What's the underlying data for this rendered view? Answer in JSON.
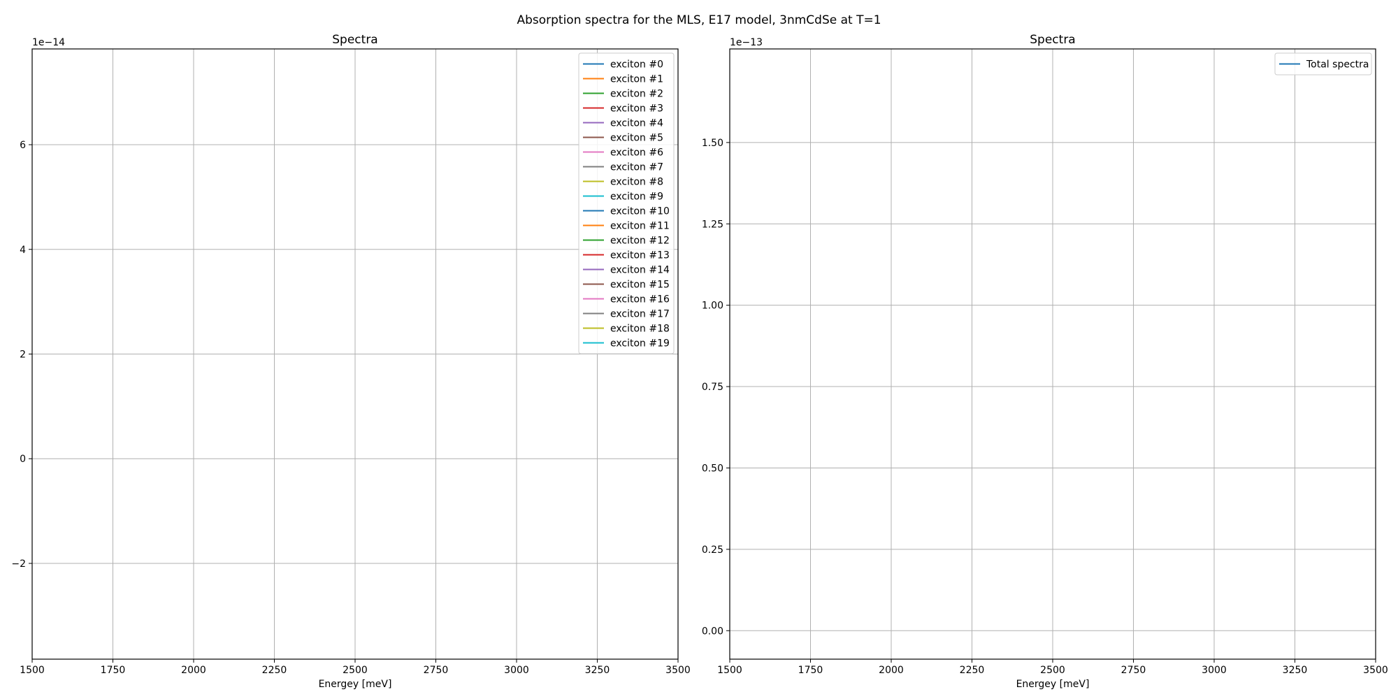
{
  "suptitle": "Absorption spectra for the MLS, E17 model, 3nmCdSe at T=1",
  "chart_data": [
    {
      "type": "line",
      "title": "Spectra",
      "xlabel": "Energey [meV]",
      "ylabel": "",
      "xlim": [
        1500,
        3500
      ],
      "ylim": [
        -3.83e-14,
        7.83e-14
      ],
      "offset_text": "1e−14",
      "x_ticks": [
        1500,
        1750,
        2000,
        2250,
        2500,
        2750,
        3000,
        3250,
        3500
      ],
      "y_ticks": [
        -2e-14,
        0,
        2e-14,
        4e-14,
        6e-14
      ],
      "y_tick_labels": [
        "−2",
        "0",
        "2",
        "4",
        "6"
      ],
      "grid": true,
      "legend_position": "top-right",
      "series": [
        {
          "name": "exciton #0",
          "color": "#1f77b4"
        },
        {
          "name": "exciton #1",
          "color": "#ff7f0e"
        },
        {
          "name": "exciton #2",
          "color": "#2ca02c"
        },
        {
          "name": "exciton #3",
          "color": "#d62728"
        },
        {
          "name": "exciton #4",
          "color": "#9467bd"
        },
        {
          "name": "exciton #5",
          "color": "#8c564b"
        },
        {
          "name": "exciton #6",
          "color": "#e377c2"
        },
        {
          "name": "exciton #7",
          "color": "#7f7f7f"
        },
        {
          "name": "exciton #8",
          "color": "#bcbd22"
        },
        {
          "name": "exciton #9",
          "color": "#17becf"
        },
        {
          "name": "exciton #10",
          "color": "#1f77b4"
        },
        {
          "name": "exciton #11",
          "color": "#ff7f0e"
        },
        {
          "name": "exciton #12",
          "color": "#2ca02c"
        },
        {
          "name": "exciton #13",
          "color": "#d62728"
        },
        {
          "name": "exciton #14",
          "color": "#9467bd"
        },
        {
          "name": "exciton #15",
          "color": "#8c564b"
        },
        {
          "name": "exciton #16",
          "color": "#e377c2"
        },
        {
          "name": "exciton #17",
          "color": "#7f7f7f"
        },
        {
          "name": "exciton #18",
          "color": "#bcbd22"
        },
        {
          "name": "exciton #19",
          "color": "#17becf"
        }
      ]
    },
    {
      "type": "line",
      "title": "Spectra",
      "xlabel": "Energey [meV]",
      "ylabel": "",
      "xlim": [
        1500,
        3500
      ],
      "ylim": [
        -8.75e-15,
        1.7875e-13
      ],
      "offset_text": "1e−13",
      "x_ticks": [
        1500,
        1750,
        2000,
        2250,
        2500,
        2750,
        3000,
        3250,
        3500
      ],
      "y_ticks": [
        0,
        2.5e-14,
        5e-14,
        7.5e-14,
        1e-13,
        1.25e-13,
        1.5e-13
      ],
      "y_tick_labels": [
        "0.00",
        "0.25",
        "0.50",
        "0.75",
        "1.00",
        "1.25",
        "1.50"
      ],
      "grid": true,
      "legend_position": "top-right",
      "series": [
        {
          "name": "Total spectra",
          "color": "#1f77b4"
        }
      ]
    }
  ]
}
